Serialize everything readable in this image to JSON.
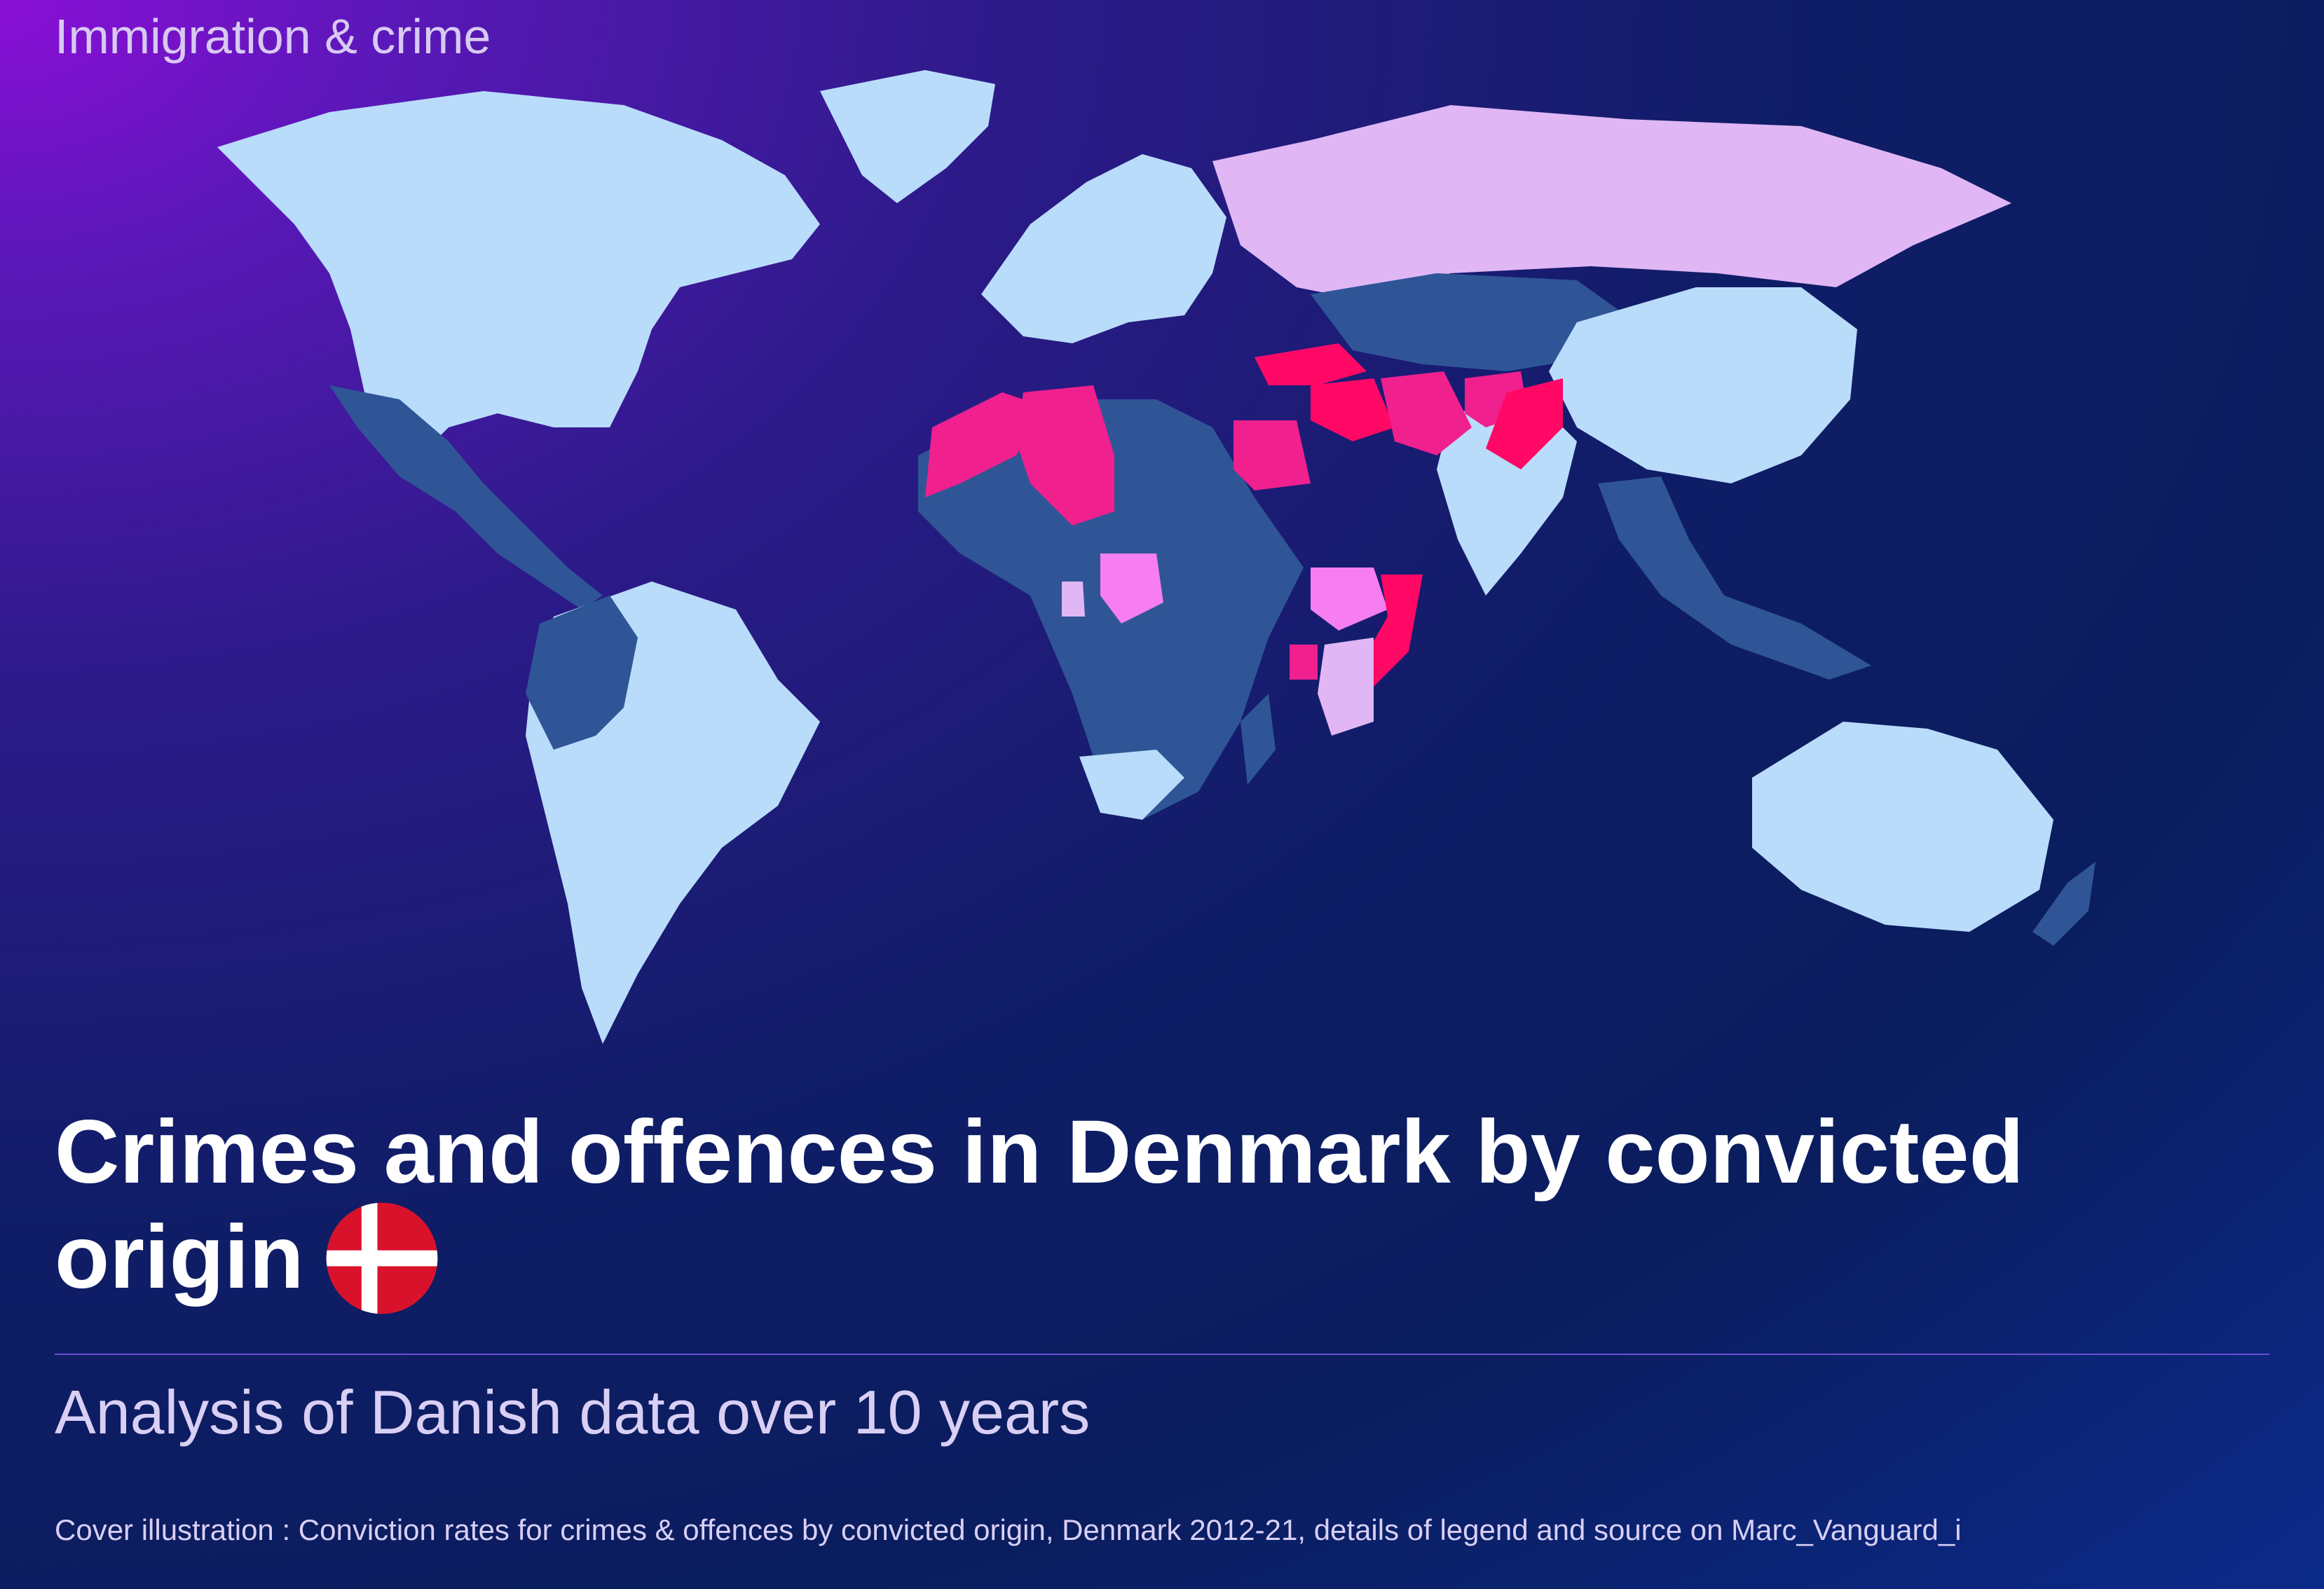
{
  "kicker": "Immigration & crime",
  "title_line1": "Crimes and offences in Denmark by convicted",
  "title_line2": "origin",
  "subtitle": "Analysis of Danish data over 10 years",
  "caption": "Cover illustration : Conviction rates for crimes & offences by convicted origin, Denmark 2012-21, details of legend and source on Marc_Vanguard_i",
  "flag": "Denmark",
  "colors": {
    "low": "#b9dcfb",
    "mid": "#2f5596",
    "elevated": "#e0b6f5",
    "high": "#f67ef0",
    "very_high": "#f0208f",
    "highest": "#ff0866",
    "ocean_dark": "#0b1d5c",
    "flag_red": "#d9122c"
  },
  "map_regions": [
    {
      "name": "North America",
      "category": "low"
    },
    {
      "name": "Greenland",
      "category": "low"
    },
    {
      "name": "Mexico & Central America",
      "category": "mid"
    },
    {
      "name": "South America",
      "category": "low"
    },
    {
      "name": "Europe",
      "category": "low"
    },
    {
      "name": "Russia",
      "category": "elevated"
    },
    {
      "name": "Central Asia",
      "category": "mid"
    },
    {
      "name": "China",
      "category": "low"
    },
    {
      "name": "India",
      "category": "low"
    },
    {
      "name": "Australia",
      "category": "low"
    },
    {
      "name": "Morocco",
      "category": "very_high"
    },
    {
      "name": "Algeria",
      "category": "very_high"
    },
    {
      "name": "Egypt",
      "category": "very_high"
    },
    {
      "name": "Turkey",
      "category": "highest"
    },
    {
      "name": "Iraq & Syria",
      "category": "highest"
    },
    {
      "name": "Iran",
      "category": "very_high"
    },
    {
      "name": "Afghanistan",
      "category": "very_high"
    },
    {
      "name": "Pakistan",
      "category": "highest"
    },
    {
      "name": "Nigeria",
      "category": "high"
    },
    {
      "name": "Ethiopia",
      "category": "high"
    },
    {
      "name": "Somalia",
      "category": "highest"
    },
    {
      "name": "Kenya",
      "category": "elevated"
    },
    {
      "name": "Uganda",
      "category": "very_high"
    },
    {
      "name": "Africa (rest)",
      "category": "mid"
    },
    {
      "name": "South Africa",
      "category": "low"
    }
  ]
}
